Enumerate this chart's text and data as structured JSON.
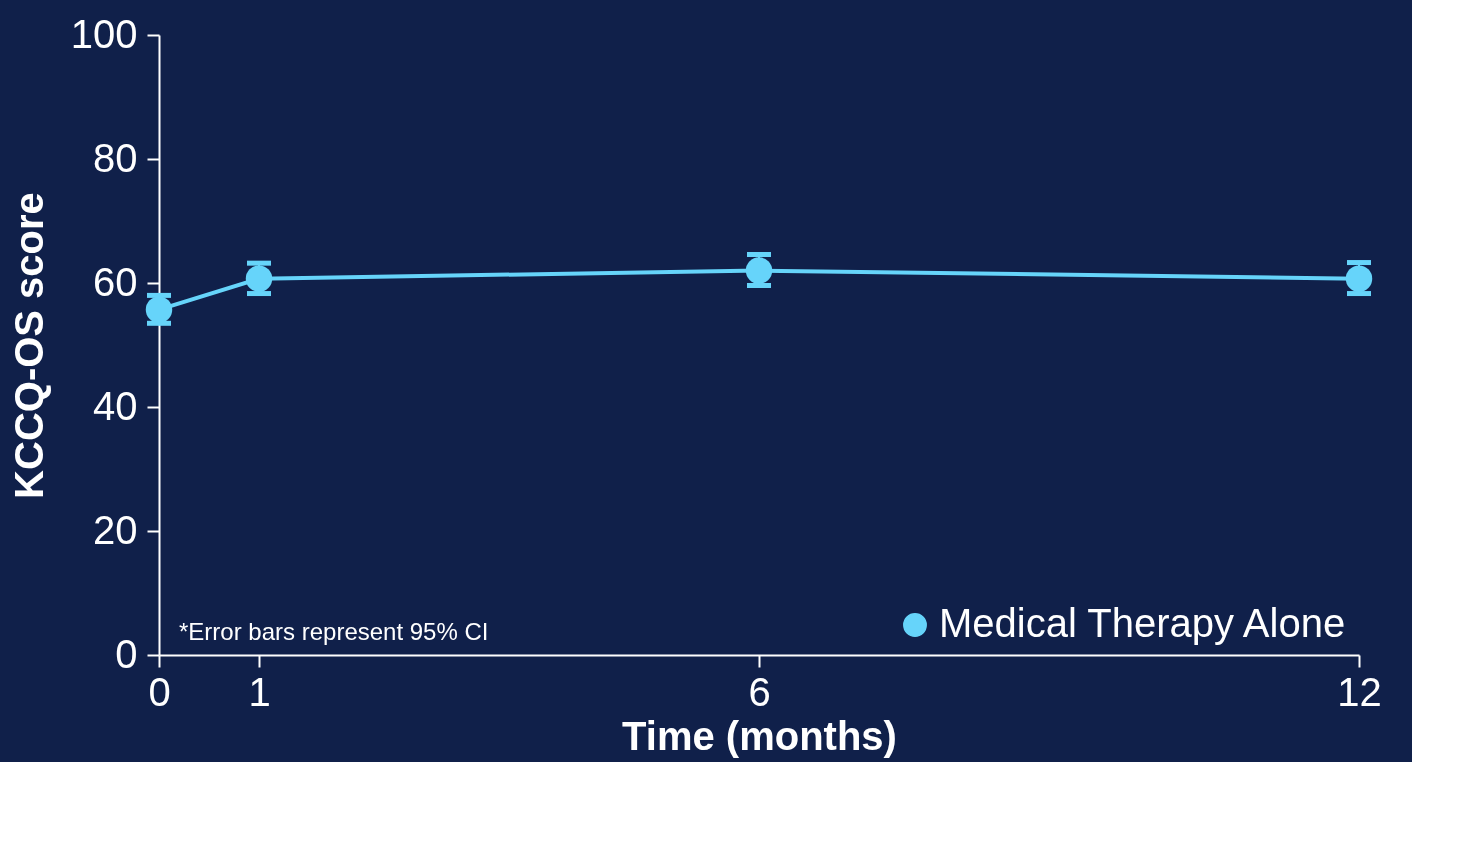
{
  "chart_data": {
    "type": "line",
    "xlabel": "Time (months)",
    "ylabel": "KCCQ-OS score",
    "x": [
      0,
      1,
      6,
      12
    ],
    "series": [
      {
        "name": "Medical Therapy Alone",
        "color": "#66d4fa",
        "values": [
          55.7,
          60.7,
          62.0,
          60.7
        ],
        "errors": [
          [
            53.5,
            58.0
          ],
          [
            58.3,
            63.2
          ],
          [
            59.6,
            64.6
          ],
          [
            58.3,
            63.3
          ]
        ]
      }
    ],
    "xlim": [
      0,
      12
    ],
    "xticks": [
      0,
      1,
      6,
      12
    ],
    "ylim": [
      0,
      100
    ],
    "yticks": [
      0,
      20,
      40,
      60,
      80,
      100
    ],
    "grid": false,
    "legend": "bottom right",
    "marker": "circle",
    "line_style": "solid",
    "annotations": [
      "*Error bars represent 95% CI"
    ]
  }
}
